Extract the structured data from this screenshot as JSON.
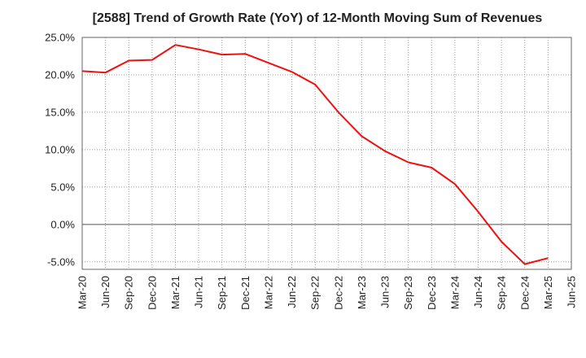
{
  "chart_data": {
    "type": "line",
    "title": "[2588]  Trend of Growth Rate (YoY) of 12-Month Moving Sum of Revenues",
    "xlabel": "",
    "ylabel": "",
    "x_ticks": [
      "Mar-20",
      "Jun-20",
      "Sep-20",
      "Dec-20",
      "Mar-21",
      "Jun-21",
      "Sep-21",
      "Dec-21",
      "Mar-22",
      "Jun-22",
      "Sep-22",
      "Dec-22",
      "Mar-23",
      "Jun-23",
      "Sep-23",
      "Dec-23",
      "Mar-24",
      "Jun-24",
      "Sep-24",
      "Dec-24",
      "Mar-25",
      "Jun-25"
    ],
    "y_ticks": [
      "25.0%",
      "20.0%",
      "15.0%",
      "10.0%",
      "5.0%",
      "0.0%",
      "-5.0%"
    ],
    "y_tick_values": [
      25,
      20,
      15,
      10,
      5,
      0,
      -5
    ],
    "ylim": [
      -6,
      25
    ],
    "grid": true,
    "series": [
      {
        "color": "#ee1111",
        "x": [
          "Mar-20",
          "Jun-20",
          "Sep-20",
          "Dec-20",
          "Mar-21",
          "Jun-21",
          "Sep-21",
          "Dec-21",
          "Mar-22",
          "Jun-22",
          "Sep-22",
          "Dec-22",
          "Mar-23",
          "Jun-23",
          "Sep-23",
          "Dec-23",
          "Mar-24",
          "Jun-24",
          "Sep-24",
          "Dec-24",
          "Mar-25"
        ],
        "values": [
          20.5,
          20.3,
          21.9,
          22.0,
          24.0,
          23.4,
          22.7,
          22.8,
          21.6,
          20.4,
          18.7,
          15.0,
          11.8,
          9.8,
          8.3,
          7.6,
          5.4,
          1.7,
          -2.3,
          -5.3,
          -4.5
        ]
      }
    ]
  }
}
